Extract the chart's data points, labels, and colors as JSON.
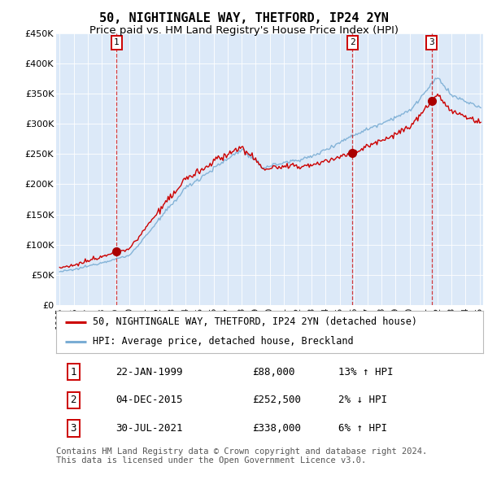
{
  "title": "50, NIGHTINGALE WAY, THETFORD, IP24 2YN",
  "subtitle": "Price paid vs. HM Land Registry's House Price Index (HPI)",
  "footer": "Contains HM Land Registry data © Crown copyright and database right 2024.\nThis data is licensed under the Open Government Licence v3.0.",
  "legend_property": "50, NIGHTINGALE WAY, THETFORD, IP24 2YN (detached house)",
  "legend_hpi": "HPI: Average price, detached house, Breckland",
  "transactions": [
    {
      "num": 1,
      "date": "22-JAN-1999",
      "price": "£88,000",
      "hpi": "13% ↑ HPI",
      "year": 1999.06,
      "price_val": 88000
    },
    {
      "num": 2,
      "date": "04-DEC-2015",
      "price": "£252,500",
      "hpi": "2% ↓ HPI",
      "year": 2015.92,
      "price_val": 252500
    },
    {
      "num": 3,
      "date": "30-JUL-2021",
      "price": "£338,000",
      "hpi": "6% ↑ HPI",
      "year": 2021.58,
      "price_val": 338000
    }
  ],
  "ylim": [
    0,
    450000
  ],
  "yticks": [
    0,
    50000,
    100000,
    150000,
    200000,
    250000,
    300000,
    350000,
    400000,
    450000
  ],
  "ytick_labels": [
    "£0",
    "£50K",
    "£100K",
    "£150K",
    "£200K",
    "£250K",
    "£300K",
    "£350K",
    "£400K",
    "£450K"
  ],
  "xlim_start": 1994.75,
  "xlim_end": 2025.25,
  "background_color": "#dce9f8",
  "red_line_color": "#cc0000",
  "blue_line_color": "#7aadd4",
  "marker_color": "#aa0000",
  "vline_color": "#cc0000",
  "box_edge_color": "#cc0000",
  "grid_color": "#ffffff",
  "title_fontsize": 11,
  "subtitle_fontsize": 9.5,
  "axis_fontsize": 8,
  "legend_fontsize": 8.5,
  "table_fontsize": 9,
  "footer_fontsize": 7.5
}
